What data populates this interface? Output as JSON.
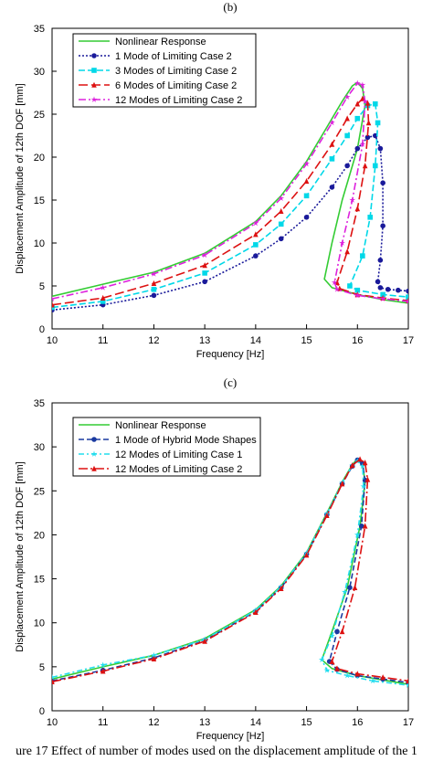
{
  "caption": "ure 17 Effect of number of modes used on the displacement amplitude of the 1",
  "chart_data": [
    {
      "type": "line",
      "panel_label": "(b)",
      "xlabel": "Frequency [Hz]",
      "ylabel": "Displacement Amplitude of 12th DOF [mm]",
      "xlim": [
        10,
        17
      ],
      "ylim": [
        0,
        35
      ],
      "xticks": [
        10,
        11,
        12,
        13,
        14,
        15,
        16,
        17
      ],
      "yticks": [
        0,
        5,
        10,
        15,
        20,
        25,
        30,
        35
      ],
      "grid": false,
      "legend_position": "top-left",
      "series": [
        {
          "name": "Nonlinear Response",
          "color": "#33cc33",
          "dash": "",
          "marker": "none",
          "x": [
            10,
            11,
            12,
            13,
            14,
            14.5,
            15,
            15.4,
            15.7,
            15.9,
            16.0,
            16.1,
            16.15,
            16.0,
            15.7,
            15.5,
            15.35,
            15.5,
            16,
            16.5,
            17
          ],
          "y": [
            3.8,
            5.2,
            6.6,
            8.8,
            12.5,
            15.5,
            19.5,
            23.5,
            26.5,
            28.3,
            28.7,
            28,
            26,
            21,
            15,
            10,
            5.8,
            4.8,
            4,
            3.4,
            3
          ]
        },
        {
          "name": "1 Mode of Limiting Case 2",
          "color": "#1a1a9a",
          "dash": "2,2",
          "marker": "circle",
          "x": [
            10,
            11,
            12,
            13,
            14,
            14.5,
            15,
            15.5,
            15.8,
            16.0,
            16.2,
            16.35,
            16.45,
            16.5,
            16.5,
            16.45,
            16.4,
            16.45,
            16.6,
            16.8,
            17
          ],
          "y": [
            2.2,
            2.8,
            3.9,
            5.5,
            8.5,
            10.5,
            13,
            16.5,
            19,
            21,
            22.3,
            22.5,
            21,
            17,
            12,
            8,
            5.5,
            4.8,
            4.6,
            4.5,
            4.4
          ]
        },
        {
          "name": "3 Modes of Limiting Case 2",
          "color": "#00d8e8",
          "dash": "7,3",
          "marker": "square",
          "x": [
            10,
            11,
            12,
            13,
            14,
            14.5,
            15,
            15.5,
            15.8,
            16.0,
            16.2,
            16.35,
            16.4,
            16.35,
            16.25,
            16.1,
            15.85,
            16,
            16.5,
            17
          ],
          "y": [
            2.5,
            3.2,
            4.6,
            6.5,
            9.8,
            12.2,
            15.5,
            19.8,
            22.5,
            24.5,
            26,
            26.2,
            24,
            19,
            13,
            8.5,
            5,
            4.5,
            4,
            3.7
          ]
        },
        {
          "name": "6 Modes of Limiting Case 2",
          "color": "#dd1111",
          "dash": "10,4",
          "marker": "triangle",
          "x": [
            10,
            11,
            12,
            13,
            14,
            14.5,
            15,
            15.5,
            15.8,
            16.0,
            16.1,
            16.2,
            16.22,
            16.15,
            16.0,
            15.8,
            15.6,
            15.65,
            16,
            16.5,
            17
          ],
          "y": [
            2.8,
            3.6,
            5.3,
            7.4,
            11,
            13.7,
            17.2,
            21.5,
            24.5,
            26.2,
            26.8,
            26.3,
            24,
            19,
            14,
            9,
            5.4,
            4.7,
            4,
            3.6,
            3.3
          ]
        },
        {
          "name": "12 Modes of Limiting Case 2",
          "color": "#dd22dd",
          "dash": "8,3,2,3",
          "marker": "star",
          "x": [
            10,
            11,
            12,
            13,
            14,
            14.5,
            15,
            15.5,
            15.8,
            16.0,
            16.1,
            16.15,
            16.1,
            15.9,
            15.7,
            15.55,
            15.6,
            16,
            16.5,
            17
          ],
          "y": [
            3.5,
            4.8,
            6.4,
            8.6,
            12.3,
            15.2,
            19.2,
            24,
            27,
            28.6,
            28.4,
            26.5,
            21.5,
            15,
            10,
            5.4,
            4.6,
            3.9,
            3.5,
            3.2
          ]
        }
      ]
    },
    {
      "type": "line",
      "panel_label": "(c)",
      "xlabel": "Frequency [Hz]",
      "ylabel": "Displacement Amplitude of 12th DOF [mm]",
      "xlim": [
        10,
        17
      ],
      "ylim": [
        0,
        35
      ],
      "xticks": [
        10,
        11,
        12,
        13,
        14,
        15,
        16,
        17
      ],
      "yticks": [
        0,
        5,
        10,
        15,
        20,
        25,
        30,
        35
      ],
      "grid": false,
      "legend_position": "top-left",
      "series": [
        {
          "name": "Nonlinear Response",
          "color": "#33cc33",
          "dash": "",
          "marker": "none",
          "x": [
            10,
            11,
            12,
            13,
            14,
            14.5,
            15,
            15.4,
            15.7,
            15.9,
            16.0,
            16.1,
            16.15,
            16.05,
            15.8,
            15.5,
            15.3,
            15.5,
            16,
            16.5,
            17
          ],
          "y": [
            3.6,
            5.0,
            6.3,
            8.2,
            11.5,
            14.2,
            18,
            22.5,
            26,
            28,
            28.6,
            28,
            26,
            21,
            14,
            9,
            5.8,
            4.8,
            4,
            3.5,
            3.0
          ]
        },
        {
          "name": "1 Mode of Hybrid Mode Shapes",
          "color": "#1a3aa0",
          "dash": "6,3",
          "marker": "circle",
          "x": [
            10,
            11,
            12,
            13,
            14,
            14.5,
            15,
            15.4,
            15.7,
            15.9,
            16.0,
            16.1,
            16.15,
            16.08,
            15.85,
            15.6,
            15.45,
            15.6,
            16,
            16.5,
            17
          ],
          "y": [
            3.4,
            4.6,
            6.0,
            8.0,
            11.3,
            14.0,
            17.8,
            22.3,
            25.8,
            27.8,
            28.5,
            28.1,
            26.2,
            21,
            14,
            9,
            5.6,
            4.7,
            4.0,
            3.6,
            3.2
          ]
        },
        {
          "name": "12 Modes of Limiting Case 1",
          "color": "#22ddee",
          "dash": "6,3,2,3",
          "marker": "star",
          "x": [
            10,
            11,
            12,
            13,
            14,
            14.5,
            15,
            15.4,
            15.7,
            15.9,
            16.0,
            16.1,
            16.12,
            16.0,
            15.75,
            15.5,
            15.3,
            15.4,
            15.8,
            16.3,
            17
          ],
          "y": [
            3.8,
            5.2,
            6.3,
            8.1,
            11.4,
            14.1,
            17.9,
            22.4,
            25.9,
            27.9,
            28.4,
            27.8,
            25.5,
            20,
            13.5,
            8.5,
            5.8,
            4.6,
            4.0,
            3.4,
            2.9
          ]
        },
        {
          "name": "12 Modes of Limiting Case 2",
          "color": "#dd1111",
          "dash": "10,3,2,3",
          "marker": "triangle",
          "x": [
            10,
            11,
            12,
            13,
            14,
            14.5,
            15,
            15.4,
            15.7,
            15.9,
            16.05,
            16.15,
            16.2,
            16.15,
            15.95,
            15.7,
            15.5,
            15.6,
            16,
            16.5,
            17
          ],
          "y": [
            3.3,
            4.5,
            5.9,
            7.9,
            11.2,
            13.9,
            17.7,
            22.2,
            25.8,
            27.9,
            28.6,
            28.2,
            26.3,
            21,
            14,
            9,
            5.6,
            4.8,
            4.2,
            3.8,
            3.4
          ]
        }
      ]
    }
  ]
}
